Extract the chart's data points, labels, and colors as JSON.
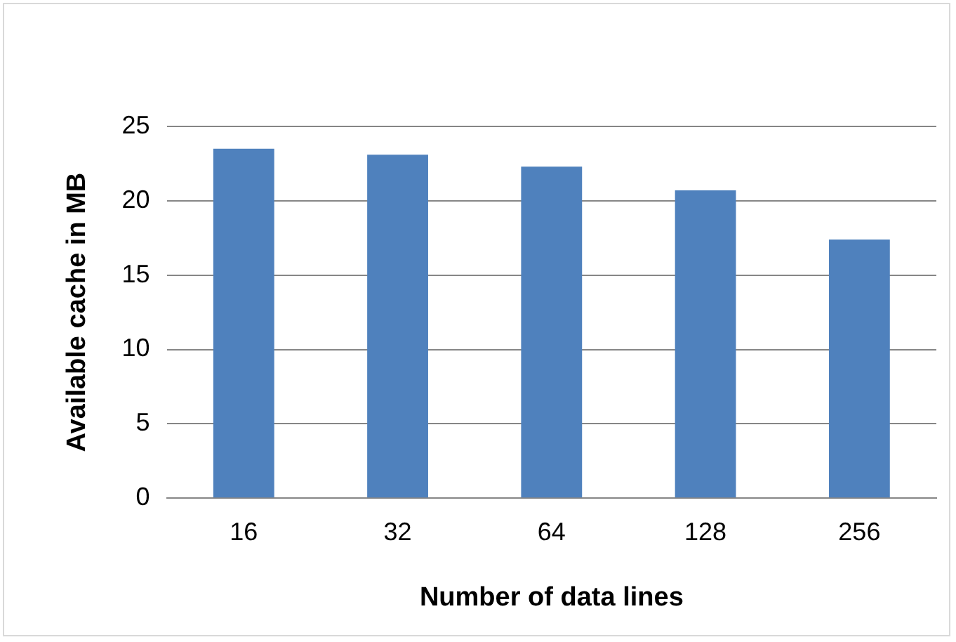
{
  "chart_data": {
    "type": "bar",
    "xlabel": "Number of data lines",
    "ylabel": "Available cache in MB",
    "categories": [
      "16",
      "32",
      "64",
      "128",
      "256"
    ],
    "values": [
      23.5,
      23.1,
      22.3,
      20.7,
      17.4
    ],
    "color": "#4f81bd",
    "ylim": [
      0,
      25
    ],
    "yticks": [
      0,
      5,
      10,
      15,
      20,
      25
    ],
    "grid": "y",
    "legend": false
  }
}
